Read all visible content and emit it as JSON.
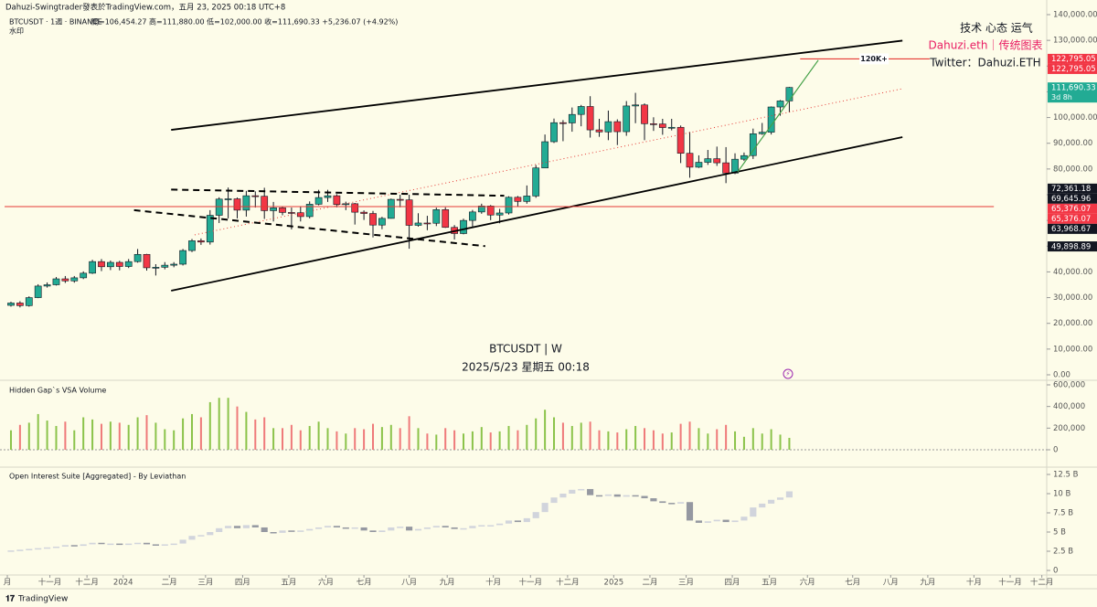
{
  "header": {
    "byline": "Dahuzi-Swingtrader發表於TradingView.com，五月 23, 2025 00:18 UTC+8",
    "symbol": "BTCUSDT · 1週 · BINANCE",
    "legend_line": "開=106,454.27 高=111,880.00 低=102,000.00 收=111,690.33 +5,236.07 (+4.92%)",
    "watermark_label": "水印",
    "brand": "TradingView"
  },
  "overlay": {
    "center_title": "BTCUSDT | W",
    "center_date": "2025/5/23 星期五 00:18",
    "motto": "技术 心态 运气",
    "author": "Dahuzi.eth｜传统图表",
    "twitter": "Twitter：Dahuzi.ETH"
  },
  "chart_data": [
    {
      "type": "candlestick",
      "title": "BTCUSDT",
      "up_color": "#22ab94",
      "down_color": "#f23645",
      "xlim": [
        -1.21,
        114.44
      ],
      "xticks": [
        {
          "value": -0.4,
          "label": "月"
        },
        {
          "value": 4.3,
          "label": "十一月"
        },
        {
          "value": 8.4,
          "label": "十二月"
        },
        {
          "value": 12.4,
          "label": "2024"
        },
        {
          "value": 17.5,
          "label": "二月"
        },
        {
          "value": 21.5,
          "label": "三月"
        },
        {
          "value": 25.6,
          "label": "四月"
        },
        {
          "value": 30.7,
          "label": "五月"
        },
        {
          "value": 34.8,
          "label": "六月"
        },
        {
          "value": 39.0,
          "label": "七月"
        },
        {
          "value": 44.0,
          "label": "八月"
        },
        {
          "value": 48.2,
          "label": "九月"
        },
        {
          "value": 53.3,
          "label": "十月"
        },
        {
          "value": 57.4,
          "label": "十一月"
        },
        {
          "value": 61.5,
          "label": "十二月"
        },
        {
          "value": 66.6,
          "label": "2025"
        },
        {
          "value": 70.6,
          "label": "二月"
        },
        {
          "value": 74.6,
          "label": "三月"
        },
        {
          "value": 79.7,
          "label": "四月"
        },
        {
          "value": 83.8,
          "label": "五月"
        },
        {
          "value": 88.0,
          "label": "六月"
        },
        {
          "value": 93.0,
          "label": "七月"
        },
        {
          "value": 97.2,
          "label": "八月"
        },
        {
          "value": 101.3,
          "label": "九月"
        },
        {
          "value": 106.4,
          "label": "十月"
        },
        {
          "value": 110.4,
          "label": "十一月"
        },
        {
          "value": 113.9,
          "label": "十二月"
        }
      ],
      "ylim": [
        0,
        140000
      ],
      "yticks": [
        {
          "value": 0,
          "label": "0.00"
        },
        {
          "value": 10000,
          "label": "10,000.00"
        },
        {
          "value": 20000,
          "label": "20,000.00"
        },
        {
          "value": 30000,
          "label": "30,000.00"
        },
        {
          "value": 40000,
          "label": "40,000.00"
        },
        {
          "value": 50000,
          "label": "50,000.00"
        },
        {
          "value": 60000,
          "label": "60,000.00"
        },
        {
          "value": 70000,
          "label": "70,000.00"
        },
        {
          "value": 80000,
          "label": "80,000.00"
        },
        {
          "value": 90000,
          "label": "90,000.00"
        },
        {
          "value": 100000,
          "label": "100,000.00"
        },
        {
          "value": 110000,
          "label": "110,000.00"
        },
        {
          "value": 120000,
          "label": "120,000.00"
        },
        {
          "value": 130000,
          "label": "130,000.00"
        },
        {
          "value": 140000,
          "label": "140,000.00"
        }
      ],
      "open": [
        27000,
        27900,
        26900,
        30000,
        34500,
        35000,
        37300,
        36500,
        37700,
        39500,
        44000,
        42000,
        43700,
        42100,
        44000,
        46800,
        41600,
        41800,
        42600,
        43000,
        48300,
        52100,
        51600,
        62000,
        68300,
        68400,
        64000,
        69600,
        69400,
        63800,
        64900,
        63100,
        63000,
        61500,
        66300,
        68900,
        69600,
        66200,
        66500,
        63200,
        62700,
        58200,
        60800,
        68200,
        68000,
        58100,
        59000,
        58900,
        64200,
        57300,
        54900,
        60000,
        63300,
        65600,
        62100,
        62900,
        69000,
        67400,
        69500,
        80400,
        90600,
        98000,
        97900,
        101200,
        104300,
        95200,
        94400,
        98400,
        94500,
        104500,
        104900,
        97600,
        97500,
        96100,
        96200,
        86100,
        80700,
        82600,
        84000,
        82400,
        78400,
        83800,
        85200,
        93700,
        94300,
        104100,
        106454.27
      ],
      "high": [
        28400,
        28600,
        30500,
        35200,
        35900,
        38000,
        38400,
        38400,
        40200,
        44700,
        45000,
        44400,
        44300,
        45000,
        48900,
        47000,
        43000,
        43800,
        43800,
        48900,
        52800,
        53000,
        64000,
        69000,
        72800,
        68900,
        71500,
        71300,
        72700,
        67200,
        65400,
        65000,
        65500,
        67400,
        71900,
        71900,
        70200,
        67300,
        66800,
        63900,
        63700,
        61400,
        68500,
        70000,
        70000,
        62800,
        61800,
        65000,
        65100,
        58200,
        60700,
        64100,
        66500,
        66000,
        64500,
        69400,
        69500,
        73600,
        81500,
        93400,
        99600,
        99000,
        103900,
        104900,
        108300,
        99500,
        102700,
        99300,
        106400,
        109600,
        105500,
        100100,
        99500,
        99500,
        96900,
        94400,
        85300,
        87400,
        88700,
        88500,
        86100,
        86400,
        95700,
        97900,
        104300,
        106800,
        111880
      ],
      "low": [
        26500,
        26200,
        26500,
        29800,
        33900,
        34700,
        35700,
        35800,
        37200,
        39200,
        40300,
        40700,
        40600,
        41500,
        43600,
        40500,
        38600,
        41000,
        41800,
        42500,
        47700,
        50500,
        50600,
        59000,
        60800,
        60800,
        61500,
        65000,
        60600,
        59600,
        62000,
        56500,
        59600,
        60800,
        65900,
        67200,
        65100,
        64000,
        58400,
        60200,
        53400,
        56600,
        60700,
        65100,
        49000,
        57600,
        56200,
        57800,
        57100,
        52600,
        54600,
        57500,
        62600,
        60100,
        58900,
        62300,
        65200,
        66500,
        68800,
        80300,
        90100,
        90800,
        94500,
        96600,
        92200,
        92500,
        91200,
        89300,
        92900,
        97800,
        91200,
        94800,
        93300,
        95000,
        82300,
        76600,
        80400,
        81600,
        81200,
        74500,
        78000,
        83100,
        83900,
        93300,
        93400,
        100700,
        102000
      ],
      "close": [
        27900,
        26900,
        30000,
        34500,
        35000,
        37300,
        36500,
        37700,
        39500,
        44000,
        42000,
        43700,
        42100,
        44000,
        46800,
        41600,
        41800,
        42600,
        43000,
        48300,
        52100,
        51600,
        62000,
        68300,
        68400,
        64000,
        69600,
        69400,
        63800,
        64900,
        63100,
        63000,
        61500,
        66300,
        68900,
        69600,
        66200,
        66500,
        63200,
        62700,
        58200,
        60800,
        68200,
        68000,
        58100,
        59000,
        58900,
        64200,
        57300,
        54900,
        60000,
        63300,
        65600,
        62100,
        62900,
        69000,
        67400,
        69500,
        80400,
        90600,
        98000,
        97900,
        101200,
        104300,
        95200,
        94400,
        98400,
        94500,
        104500,
        104900,
        97600,
        97500,
        96100,
        96200,
        86100,
        80700,
        82600,
        84000,
        82400,
        78400,
        83800,
        85200,
        93700,
        94300,
        104100,
        106454,
        111690.33
      ],
      "lines": [
        {
          "points": [
            [
              17.7,
              95200
            ],
            [
              98.5,
              129900
            ]
          ],
          "color": "#000000",
          "width": 1.8,
          "dash": "none"
        },
        {
          "points": [
            [
              17.7,
              32700
            ],
            [
              98.5,
              92400
            ]
          ],
          "color": "#000000",
          "width": 1.8,
          "dash": "none"
        },
        {
          "points": [
            [
              20.3,
              54400
            ],
            [
              98.5,
              111200
            ]
          ],
          "color": "#e53935",
          "width": 1,
          "dash": "1 3"
        },
        {
          "points": [
            [
              17.7,
              72000
            ],
            [
              54.5,
              69600
            ]
          ],
          "color": "#000000",
          "width": 2,
          "dash": "7 5"
        },
        {
          "points": [
            [
              13.6,
              64000
            ],
            [
              52.4,
              50000
            ]
          ],
          "color": "#000000",
          "width": 2,
          "dash": "7 5"
        },
        {
          "points": [
            [
              -0.7,
              65376.07
            ],
            [
              108.6,
              65376.07
            ]
          ],
          "color": "#e53935",
          "width": 1,
          "dash": "none"
        },
        {
          "points": [
            [
              87.2,
              122795.05
            ],
            [
              101.5,
              122795.05
            ]
          ],
          "color": "#e53935",
          "width": 1.2,
          "dash": "none"
        },
        {
          "points": [
            [
              80.3,
              78900
            ],
            [
              89.2,
              122300
            ]
          ],
          "color": "#43a047",
          "width": 1.2,
          "dash": "none"
        }
      ],
      "target_label": "120K+",
      "axis_badges": [
        {
          "value": 122795.05,
          "label": "122,795.05",
          "color": "#f23645"
        },
        {
          "value": 122795.05,
          "label": "122,795.05",
          "color": "#f23645"
        },
        {
          "value": 111690.33,
          "label": "111,690.33",
          "color": "#22ab94",
          "sub": "3d 8h"
        },
        {
          "value": 72361.18,
          "label": "72,361.18",
          "color": "#131722"
        },
        {
          "value": 69645.96,
          "label": "69,645.96",
          "color": "#131722"
        },
        {
          "value": 65376.07,
          "label": "65,376.07",
          "color": "#f23645"
        },
        {
          "value": 65376.07,
          "label": "65,376.07",
          "color": "#f23645"
        },
        {
          "value": 63968.67,
          "label": "63,968.67",
          "color": "#131722"
        },
        {
          "value": 49898.89,
          "label": "49,898.89",
          "color": "#131722"
        }
      ]
    },
    {
      "type": "bar",
      "title": "Hidden Gap`s VSA Volume",
      "ylim": [
        0,
        600000
      ],
      "yticks": [
        0,
        {
          "value": 200000,
          "label": "200,000"
        },
        {
          "value": 400000,
          "label": "400,000"
        },
        {
          "value": 600000,
          "label": "600,000"
        }
      ],
      "values": [
        180000,
        230000,
        250000,
        330000,
        270000,
        220000,
        260000,
        180000,
        300000,
        280000,
        240000,
        260000,
        250000,
        230000,
        300000,
        320000,
        250000,
        190000,
        180000,
        290000,
        330000,
        300000,
        440000,
        480000,
        480000,
        400000,
        350000,
        280000,
        300000,
        200000,
        200000,
        230000,
        180000,
        220000,
        260000,
        200000,
        170000,
        150000,
        200000,
        190000,
        240000,
        210000,
        230000,
        200000,
        310000,
        200000,
        150000,
        140000,
        200000,
        180000,
        150000,
        170000,
        210000,
        160000,
        170000,
        220000,
        180000,
        230000,
        290000,
        370000,
        300000,
        250000,
        220000,
        250000,
        260000,
        180000,
        170000,
        160000,
        190000,
        220000,
        200000,
        180000,
        150000,
        160000,
        240000,
        260000,
        200000,
        150000,
        190000,
        230000,
        170000,
        120000,
        200000,
        150000,
        190000,
        140000,
        110000
      ]
    },
    {
      "type": "oi",
      "title": "Open Interest Suite [Aggregated] - By Leviathan",
      "up_color": "#d1d4dc",
      "down_color": "#9598a1",
      "ylim": [
        0,
        12.5
      ],
      "yticks": [
        0,
        {
          "value": 2.5,
          "label": "2.5 B"
        },
        {
          "value": 5,
          "label": "5 B"
        },
        {
          "value": 7.5,
          "label": "7.5 B"
        },
        {
          "value": 10,
          "label": "10 B"
        },
        {
          "value": 12.5,
          "label": "12.5 B"
        }
      ],
      "values": [
        2.6,
        2.7,
        2.8,
        2.9,
        3.0,
        3.1,
        3.3,
        3.2,
        3.4,
        3.6,
        3.5,
        3.5,
        3.4,
        3.5,
        3.6,
        3.4,
        3.3,
        3.4,
        3.5,
        4.0,
        4.5,
        4.6,
        5.0,
        5.5,
        5.8,
        5.5,
        5.9,
        5.6,
        5.0,
        4.9,
        5.2,
        5.1,
        5.2,
        5.4,
        5.6,
        5.8,
        5.6,
        5.5,
        5.6,
        5.2,
        5.0,
        5.2,
        5.6,
        5.7,
        5.2,
        5.4,
        5.6,
        5.8,
        5.6,
        5.4,
        5.5,
        5.8,
        5.9,
        5.9,
        6.1,
        6.5,
        6.3,
        6.8,
        7.6,
        8.8,
        9.5,
        10.0,
        10.5,
        10.6,
        9.8,
        9.7,
        9.9,
        9.6,
        9.8,
        9.7,
        9.4,
        9.0,
        8.8,
        8.7,
        8.9,
        6.5,
        6.2,
        6.4,
        6.6,
        6.3,
        6.5,
        7.0,
        8.2,
        8.7,
        9.2,
        9.5,
        10.3
      ]
    }
  ]
}
